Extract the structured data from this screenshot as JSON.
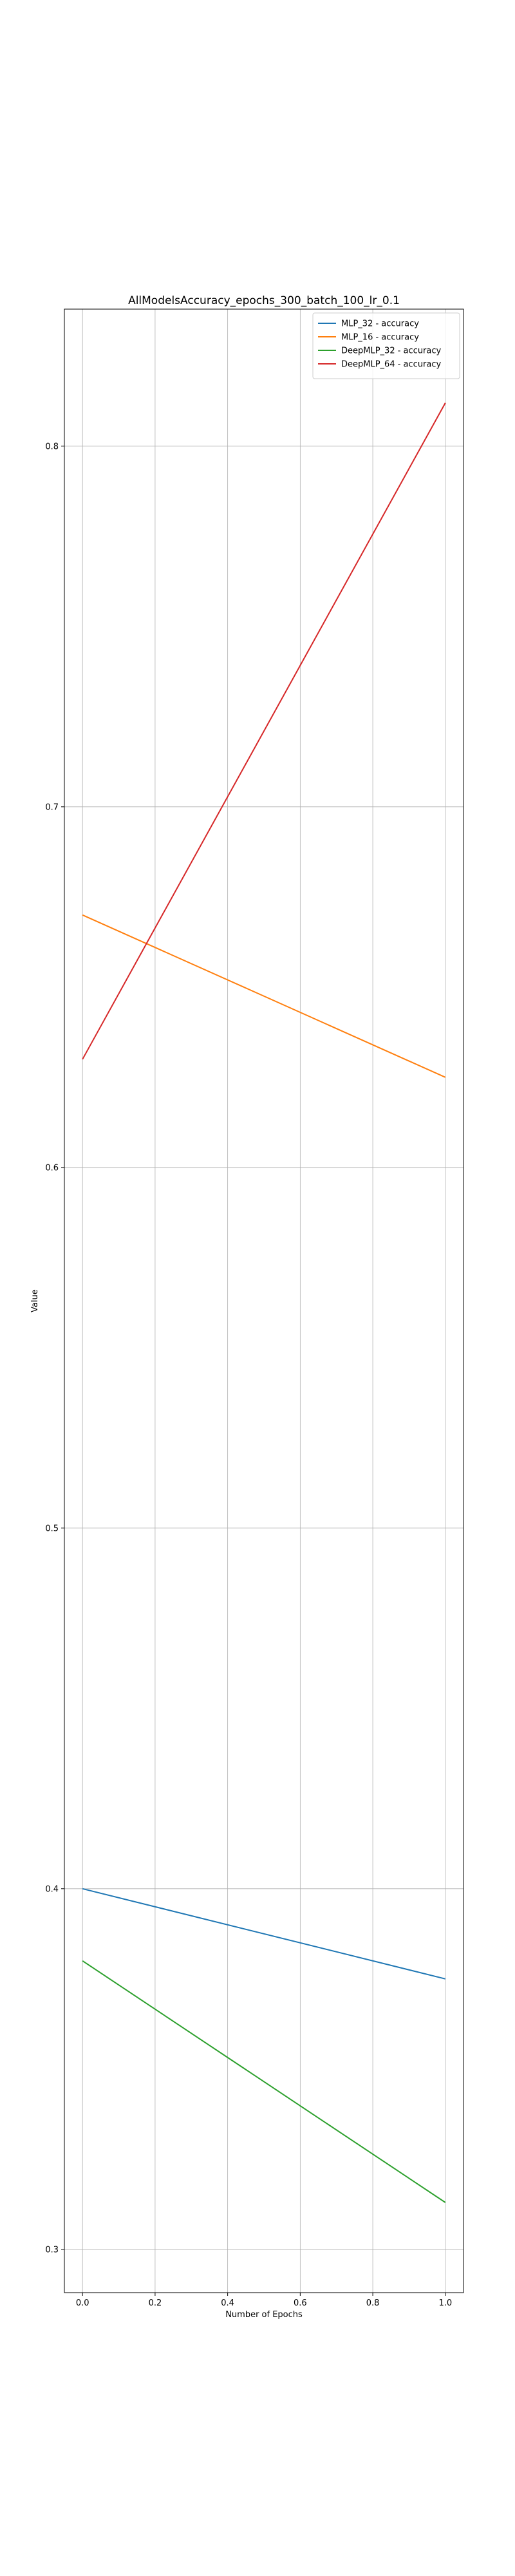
{
  "chart_data": {
    "type": "line",
    "title": "AllModelsAccuracy_epochs_300_batch_100_lr_0.1",
    "xlabel": "Number of Epochs",
    "ylabel": "Value",
    "x": [
      0.0,
      1.0
    ],
    "xlim": [
      -0.05,
      1.05
    ],
    "ylim": [
      0.288,
      0.838
    ],
    "xticks": [
      0.0,
      0.2,
      0.4,
      0.6,
      0.8,
      1.0
    ],
    "xtick_labels": [
      "0.0",
      "0.2",
      "0.4",
      "0.6",
      "0.8",
      "1.0"
    ],
    "yticks": [
      0.3,
      0.4,
      0.5,
      0.6,
      0.7,
      0.8
    ],
    "ytick_labels": [
      "0.3",
      "0.4",
      "0.5",
      "0.6",
      "0.7",
      "0.8"
    ],
    "grid": true,
    "legend_position": "top-right",
    "series": [
      {
        "name": "MLP_32 - accuracy",
        "color": "#1f77b4",
        "values": [
          0.4,
          0.375
        ]
      },
      {
        "name": "MLP_16 - accuracy",
        "color": "#ff7f0e",
        "values": [
          0.67,
          0.625
        ]
      },
      {
        "name": "DeepMLP_32 - accuracy",
        "color": "#2ca02c",
        "values": [
          0.38,
          0.313
        ]
      },
      {
        "name": "DeepMLP_64 - accuracy",
        "color": "#d62728",
        "values": [
          0.63,
          0.812
        ]
      }
    ]
  }
}
